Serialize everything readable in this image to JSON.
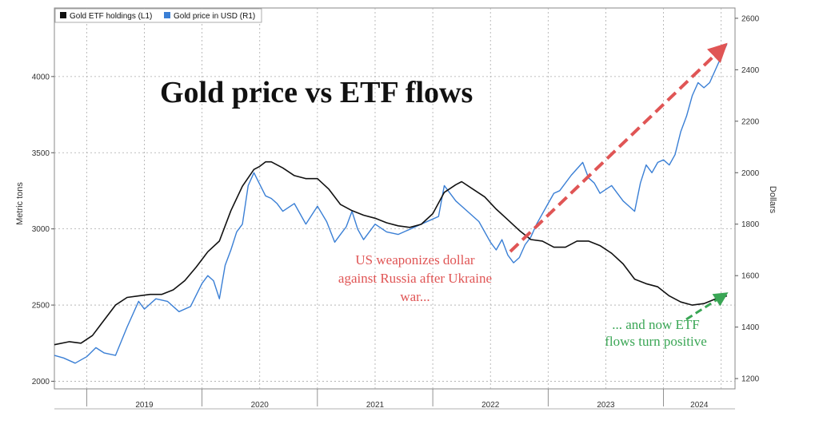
{
  "chart_data": {
    "type": "line",
    "title": "Gold price vs ETF flows",
    "x_tick_labels": [
      "2019",
      "2020",
      "2021",
      "2022",
      "2023",
      "2024"
    ],
    "x_range": [
      2018.72,
      2024.62
    ],
    "y_left": {
      "label": "Metric tons",
      "range": [
        1950,
        4450
      ],
      "ticks": [
        2000,
        2500,
        3000,
        3500,
        4000
      ]
    },
    "y_right": {
      "label": "Dollars",
      "range": [
        1160,
        2640
      ],
      "ticks": [
        1200,
        1400,
        1600,
        1800,
        2000,
        2200,
        2400,
        2600
      ]
    },
    "grid": true,
    "legend": {
      "position": "top-left",
      "entries": [
        {
          "name": "Gold ETF holdings (L1)",
          "color": "#111111"
        },
        {
          "name": "Gold price in USD (R1)",
          "color": "#3a7fd5"
        }
      ]
    },
    "series": [
      {
        "name": "Gold ETF holdings (L1)",
        "axis": "left",
        "color": "#111111",
        "x": [
          2018.72,
          2018.85,
          2018.95,
          2019.05,
          2019.15,
          2019.25,
          2019.35,
          2019.45,
          2019.55,
          2019.65,
          2019.75,
          2019.85,
          2019.95,
          2020.05,
          2020.15,
          2020.25,
          2020.35,
          2020.45,
          2020.5,
          2020.55,
          2020.6,
          2020.7,
          2020.8,
          2020.9,
          2021.0,
          2021.1,
          2021.2,
          2021.3,
          2021.4,
          2021.5,
          2021.6,
          2021.7,
          2021.8,
          2021.9,
          2022.0,
          2022.1,
          2022.2,
          2022.25,
          2022.35,
          2022.45,
          2022.55,
          2022.65,
          2022.75,
          2022.85,
          2022.95,
          2023.05,
          2023.15,
          2023.25,
          2023.35,
          2023.45,
          2023.55,
          2023.65,
          2023.75,
          2023.85,
          2023.95,
          2024.05,
          2024.15,
          2024.25,
          2024.35,
          2024.45,
          2024.55
        ],
        "values": [
          2240,
          2260,
          2250,
          2300,
          2400,
          2500,
          2550,
          2560,
          2570,
          2570,
          2600,
          2660,
          2750,
          2850,
          2920,
          3120,
          3280,
          3390,
          3410,
          3440,
          3440,
          3400,
          3350,
          3330,
          3330,
          3260,
          3160,
          3120,
          3090,
          3070,
          3040,
          3020,
          3010,
          3030,
          3100,
          3240,
          3290,
          3310,
          3260,
          3210,
          3130,
          3060,
          2990,
          2930,
          2920,
          2880,
          2880,
          2920,
          2920,
          2890,
          2840,
          2770,
          2670,
          2640,
          2620,
          2560,
          2520,
          2500,
          2510,
          2540,
          2560
        ]
      },
      {
        "name": "Gold price in USD (R1)",
        "axis": "right",
        "color": "#3a7fd5",
        "x": [
          2018.72,
          2018.8,
          2018.9,
          2019.0,
          2019.08,
          2019.15,
          2019.25,
          2019.35,
          2019.45,
          2019.5,
          2019.6,
          2019.7,
          2019.8,
          2019.9,
          2020.0,
          2020.05,
          2020.1,
          2020.15,
          2020.2,
          2020.25,
          2020.3,
          2020.35,
          2020.4,
          2020.45,
          2020.55,
          2020.6,
          2020.65,
          2020.7,
          2020.8,
          2020.9,
          2021.0,
          2021.08,
          2021.15,
          2021.2,
          2021.25,
          2021.3,
          2021.35,
          2021.4,
          2021.5,
          2021.6,
          2021.7,
          2021.8,
          2021.9,
          2022.0,
          2022.05,
          2022.1,
          2022.2,
          2022.3,
          2022.4,
          2022.5,
          2022.55,
          2022.6,
          2022.65,
          2022.7,
          2022.75,
          2022.8,
          2022.85,
          2022.9,
          2023.0,
          2023.05,
          2023.1,
          2023.2,
          2023.3,
          2023.35,
          2023.4,
          2023.45,
          2023.55,
          2023.65,
          2023.75,
          2023.8,
          2023.85,
          2023.9,
          2023.95,
          2024.0,
          2024.05,
          2024.1,
          2024.15,
          2024.2,
          2024.25,
          2024.3,
          2024.35,
          2024.4,
          2024.45,
          2024.5,
          2024.55
        ],
        "values": [
          1290,
          1280,
          1260,
          1285,
          1320,
          1300,
          1290,
          1400,
          1500,
          1470,
          1510,
          1500,
          1460,
          1480,
          1570,
          1600,
          1580,
          1510,
          1640,
          1700,
          1770,
          1800,
          1950,
          2000,
          1910,
          1900,
          1880,
          1850,
          1880,
          1800,
          1870,
          1810,
          1730,
          1760,
          1790,
          1850,
          1780,
          1740,
          1800,
          1770,
          1760,
          1780,
          1800,
          1820,
          1830,
          1950,
          1890,
          1850,
          1810,
          1730,
          1700,
          1740,
          1680,
          1650,
          1670,
          1720,
          1750,
          1800,
          1880,
          1920,
          1930,
          1990,
          2040,
          1980,
          1960,
          1920,
          1950,
          1890,
          1850,
          1960,
          2030,
          2000,
          2040,
          2050,
          2030,
          2070,
          2160,
          2220,
          2300,
          2350,
          2330,
          2350,
          2400,
          2450,
          2500
        ]
      }
    ],
    "annotations": [
      {
        "text_lines": [
          "US weaponizes dollar",
          "against Russia after Ukraine",
          "war..."
        ],
        "color": "#e05555"
      },
      {
        "text_lines": [
          "... and now ETF",
          "flows turn positive"
        ],
        "color": "#3aa655"
      }
    ]
  }
}
